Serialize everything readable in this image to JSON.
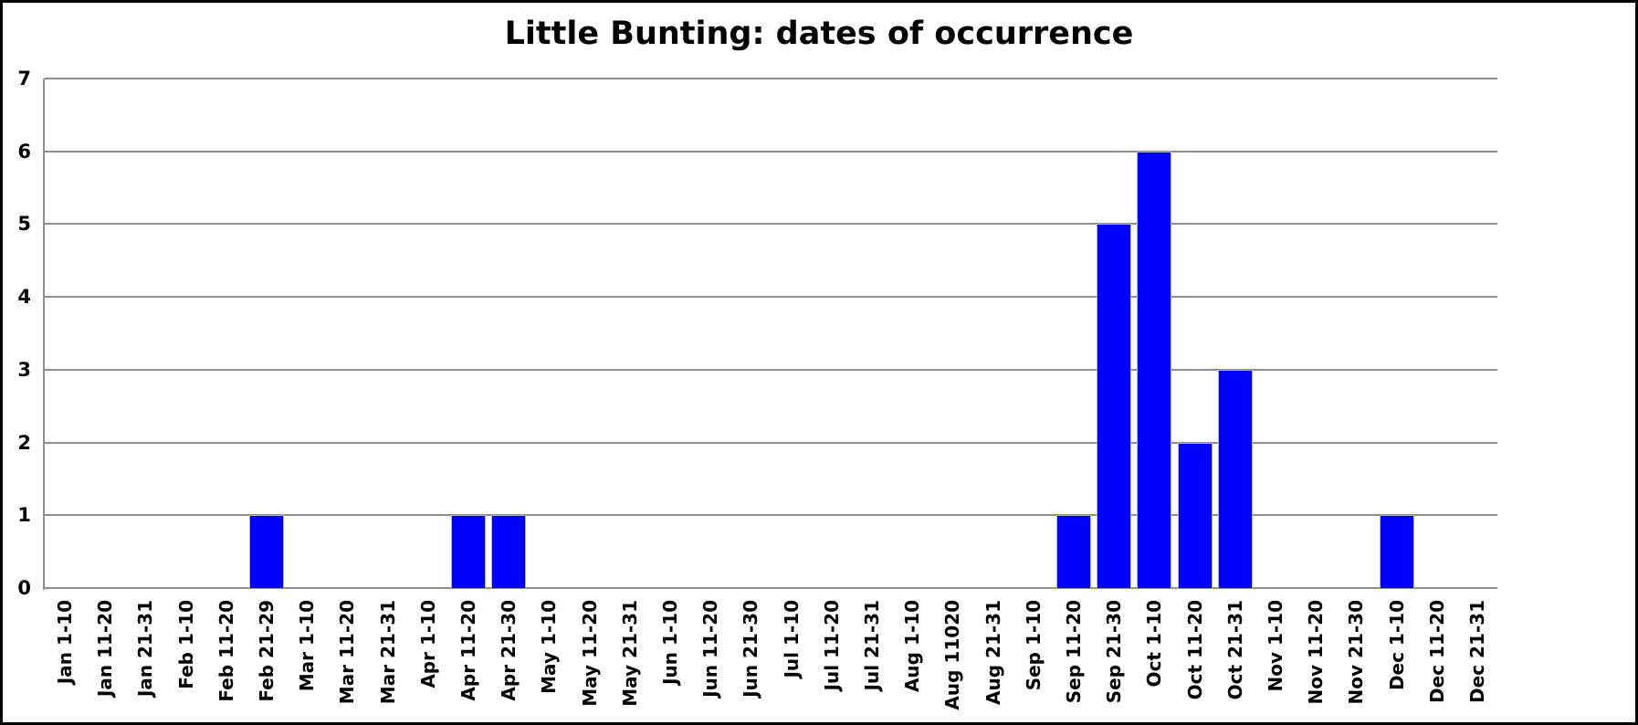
{
  "chart_data": {
    "type": "bar",
    "title": "Little Bunting: dates of occurrence",
    "categories": [
      "Jan 1-10",
      "Jan 11-20",
      "Jan 21-31",
      "Feb 1-10",
      "Feb 11-20",
      "Feb 21-29",
      "Mar 1-10",
      "Mar 11-20",
      "Mar 21-31",
      "Apr 1-10",
      "Apr 11-20",
      "Apr 21-30",
      "May 1-10",
      "May 11-20",
      "May 21-31",
      "Jun 1-10",
      "Jun 11-20",
      "Jun 21-30",
      "Jul 1-10",
      "Jul 11-20",
      "Jul 21-31",
      "Aug 1-10",
      "Aug 11020",
      "Aug 21-31",
      "Sep 1-10",
      "Sep 11-20",
      "Sep 21-30",
      "Oct 1-10",
      "Oct 11-20",
      "Oct 21-31",
      "Nov 1-10",
      "Nov 11-20",
      "Nov 21-30",
      "Dec 1-10",
      "Dec 11-20",
      "Dec 21-31"
    ],
    "values": [
      0,
      0,
      0,
      0,
      0,
      1,
      0,
      0,
      0,
      0,
      1,
      1,
      0,
      0,
      0,
      0,
      0,
      0,
      0,
      0,
      0,
      0,
      0,
      0,
      0,
      1,
      5,
      6,
      2,
      3,
      0,
      0,
      0,
      1,
      0,
      0
    ],
    "xlabel": "",
    "ylabel": "",
    "ylim": [
      0,
      7
    ],
    "yticks": [
      "0",
      "1",
      "2",
      "3",
      "4",
      "5",
      "6",
      "7"
    ],
    "x_label_rotation_deg": 90,
    "grid": "horizontal",
    "legend": "none",
    "colors": {
      "bar_fill": "#0000fe",
      "bar_edge": "#b3b3c6",
      "gridline": "#8e8e8e",
      "frame": "#000000",
      "text": "#000000",
      "background": "#ffffff"
    }
  }
}
